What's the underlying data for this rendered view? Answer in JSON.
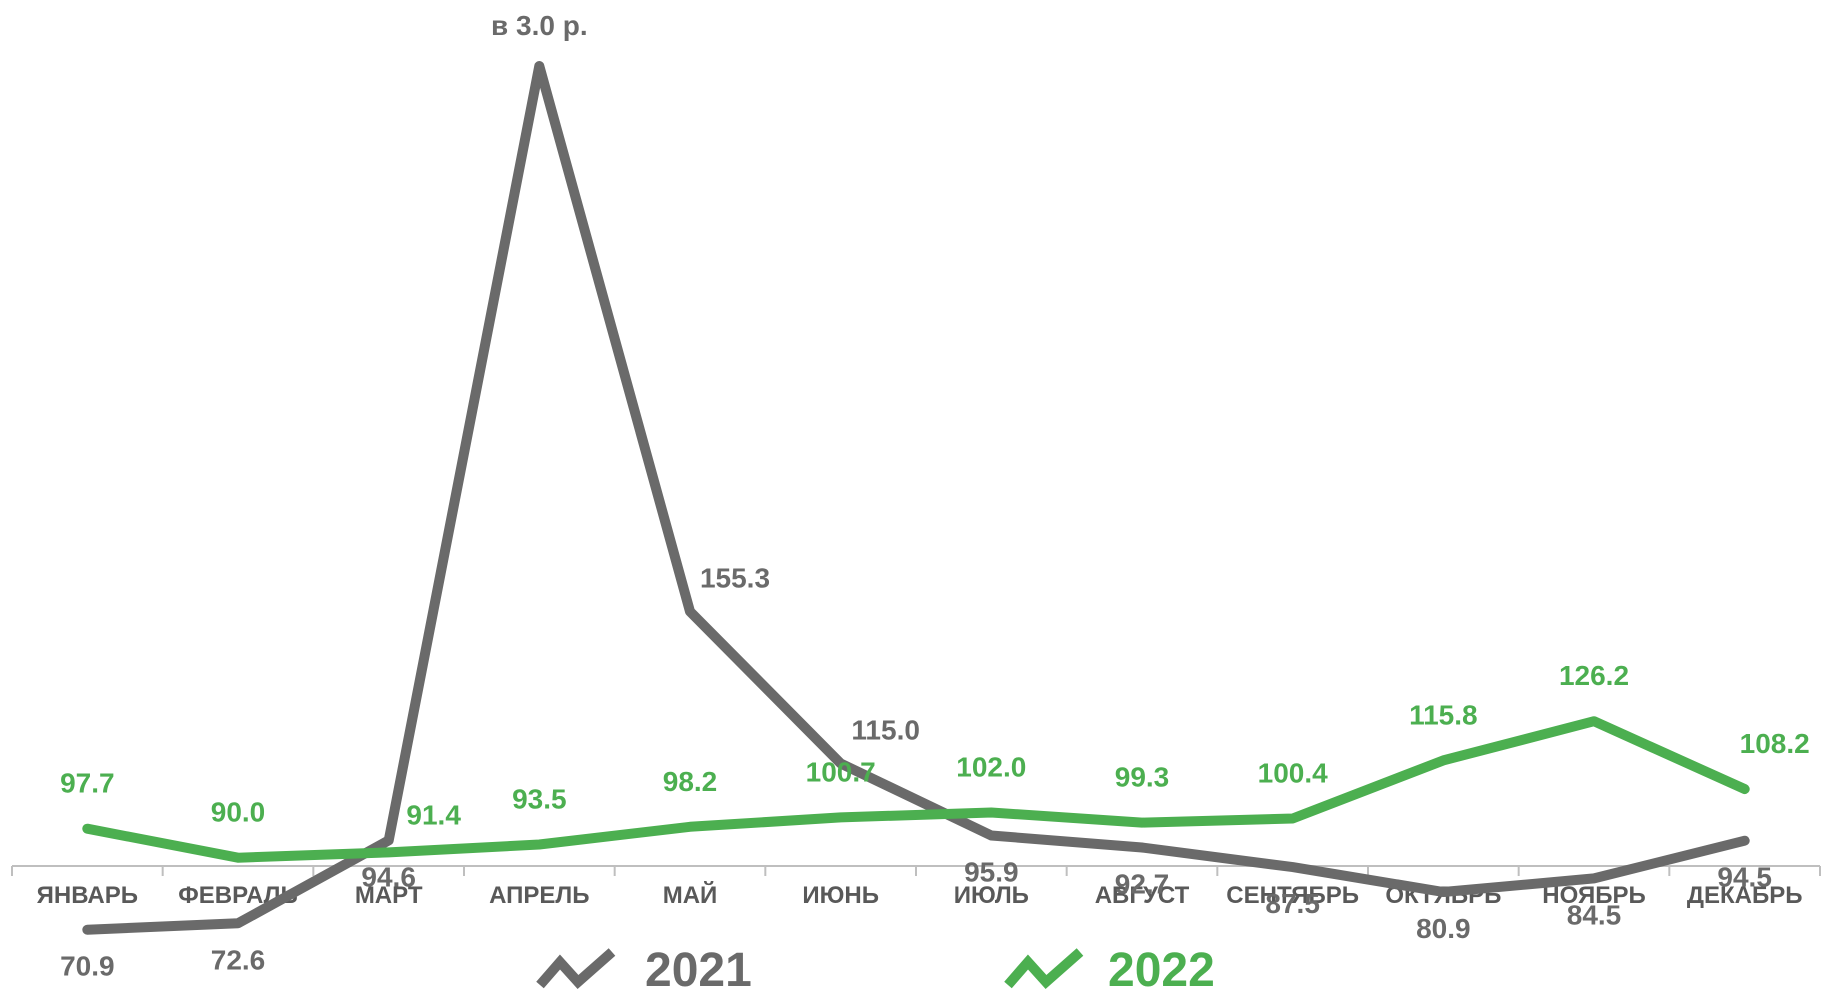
{
  "chart_data": {
    "type": "line",
    "title": "",
    "xlabel": "",
    "ylabel": "",
    "categories": [
      "ЯНВАРЬ",
      "ФЕВРАЛЬ",
      "МАРТ",
      "АПРЕЛЬ",
      "МАЙ",
      "ИЮНЬ",
      "ИЮЛЬ",
      "АВГУСТ",
      "СЕНТЯБРЬ",
      "ОКТЯБРЬ",
      "НОЯБРЬ",
      "ДЕКАБРЬ"
    ],
    "series": [
      {
        "name": "2021",
        "color": "#6a6a6a",
        "values": [
          70.9,
          72.6,
          94.6,
          300.0,
          155.3,
          115.0,
          95.9,
          92.7,
          87.5,
          80.9,
          84.5,
          94.5
        ],
        "labels": [
          "70.9",
          "72.6",
          "94.6",
          "в 3.0 р.",
          "155.3",
          "115.0",
          "95.9",
          "92.7",
          "87.5",
          "80.9",
          "84.5",
          "94.5"
        ]
      },
      {
        "name": "2022",
        "color": "#4caf50",
        "values": [
          97.7,
          90.0,
          91.4,
          93.5,
          98.2,
          100.7,
          102.0,
          99.3,
          100.4,
          115.8,
          126.2,
          108.2
        ],
        "labels": [
          "97.7",
          "90.0",
          "91.4",
          "93.5",
          "98.2",
          "100.7",
          "102.0",
          "99.3",
          "100.4",
          "115.8",
          "126.2",
          "108.2"
        ]
      }
    ],
    "ylim": [
      40,
      300
    ],
    "grid": false,
    "legend_position": "bottom"
  }
}
